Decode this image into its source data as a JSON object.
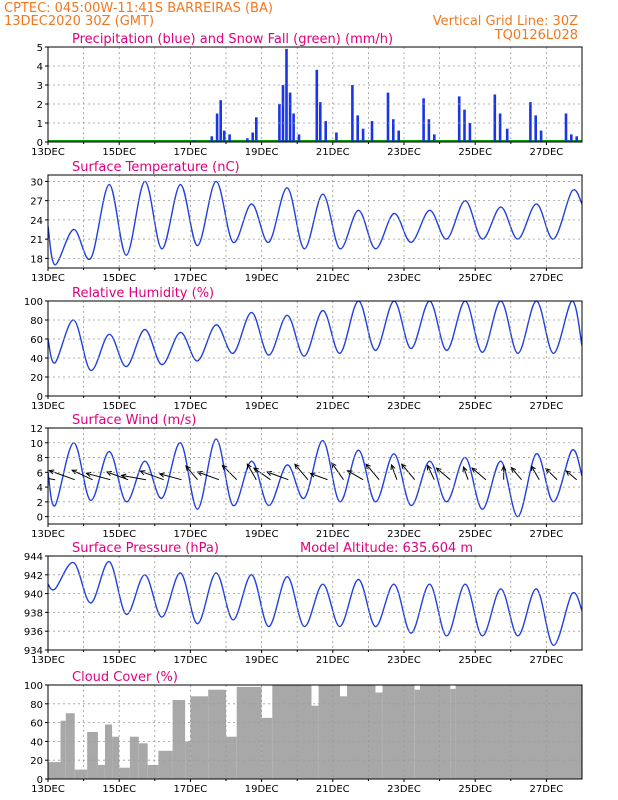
{
  "header": {
    "line1_left": "CPTEC:   045:00W-11:41S   BARREIRAS (BA)",
    "line2_left": "13DEC2020 30Z (GMT)",
    "line2_right": "Vertical Grid Line: 30Z",
    "line3_right": "TQ0126L028",
    "text_color": "#f07820"
  },
  "colors": {
    "title": "#e0007f",
    "line": "#2040e0",
    "precip": "#1a35e6",
    "snow": "#00a000",
    "cloud": "#a8a8a8",
    "wind_arrow": "#000000",
    "grid": "#9a9a9a"
  },
  "chart_data": [
    {
      "id": "precip",
      "type": "bar",
      "title": "Precipitation (blue) and Snow Fall (green) (mm/h)",
      "ylim": [
        0,
        5
      ],
      "yticks": [
        "0",
        "1",
        "2",
        "3",
        "4",
        "5"
      ],
      "xticks": [
        "13DEC",
        "15DEC",
        "17DEC",
        "19DEC",
        "21DEC",
        "23DEC",
        "25DEC",
        "27DEC"
      ],
      "grid": true,
      "series": [
        {
          "name": "Precipitation",
          "events": [
            {
              "day": 17.1,
              "value": 0.1
            },
            {
              "day": 17.6,
              "value": 0.3
            },
            {
              "day": 17.75,
              "value": 1.5
            },
            {
              "day": 17.85,
              "value": 2.2
            },
            {
              "day": 17.95,
              "value": 0.6
            },
            {
              "day": 18.1,
              "value": 0.4
            },
            {
              "day": 18.6,
              "value": 0.2
            },
            {
              "day": 18.75,
              "value": 0.5
            },
            {
              "day": 18.85,
              "value": 1.3
            },
            {
              "day": 19.5,
              "value": 2.0
            },
            {
              "day": 19.6,
              "value": 3.0
            },
            {
              "day": 19.7,
              "value": 4.9
            },
            {
              "day": 19.8,
              "value": 2.6
            },
            {
              "day": 19.9,
              "value": 1.5
            },
            {
              "day": 20.05,
              "value": 0.4
            },
            {
              "day": 20.55,
              "value": 3.8
            },
            {
              "day": 20.65,
              "value": 2.1
            },
            {
              "day": 20.8,
              "value": 1.1
            },
            {
              "day": 21.1,
              "value": 0.5
            },
            {
              "day": 21.55,
              "value": 3.0
            },
            {
              "day": 21.7,
              "value": 1.4
            },
            {
              "day": 21.85,
              "value": 0.7
            },
            {
              "day": 22.1,
              "value": 1.1
            },
            {
              "day": 22.55,
              "value": 2.6
            },
            {
              "day": 22.7,
              "value": 1.2
            },
            {
              "day": 22.85,
              "value": 0.6
            },
            {
              "day": 23.55,
              "value": 2.3
            },
            {
              "day": 23.7,
              "value": 1.2
            },
            {
              "day": 23.85,
              "value": 0.4
            },
            {
              "day": 24.55,
              "value": 2.4
            },
            {
              "day": 24.7,
              "value": 1.7
            },
            {
              "day": 24.85,
              "value": 1.0
            },
            {
              "day": 25.55,
              "value": 2.5
            },
            {
              "day": 25.7,
              "value": 1.5
            },
            {
              "day": 25.9,
              "value": 0.7
            },
            {
              "day": 26.55,
              "value": 2.1
            },
            {
              "day": 26.7,
              "value": 1.4
            },
            {
              "day": 26.85,
              "value": 0.6
            },
            {
              "day": 27.55,
              "value": 1.5
            },
            {
              "day": 27.7,
              "value": 0.4
            },
            {
              "day": 27.85,
              "value": 0.3
            }
          ]
        },
        {
          "name": "Snow Fall",
          "value": 0
        }
      ]
    },
    {
      "id": "temp",
      "type": "line",
      "title": "Surface Temperature (nC)",
      "ylim": [
        16.5,
        31
      ],
      "yticks": [
        "18",
        "21",
        "24",
        "27",
        "30"
      ],
      "xticks": [
        "13DEC",
        "15DEC",
        "17DEC",
        "19DEC",
        "21DEC",
        "23DEC",
        "25DEC",
        "27DEC"
      ],
      "grid": true,
      "daily": [
        {
          "day": 13,
          "min": 17.0,
          "max": 22.5
        },
        {
          "day": 14,
          "min": 18.0,
          "max": 29.5
        },
        {
          "day": 15,
          "min": 18.5,
          "max": 30.0
        },
        {
          "day": 16,
          "min": 19.5,
          "max": 29.5
        },
        {
          "day": 17,
          "min": 20.0,
          "max": 30.0
        },
        {
          "day": 18,
          "min": 20.5,
          "max": 26.5
        },
        {
          "day": 19,
          "min": 20.5,
          "max": 29.0
        },
        {
          "day": 20,
          "min": 19.5,
          "max": 28.0
        },
        {
          "day": 21,
          "min": 19.5,
          "max": 25.5
        },
        {
          "day": 22,
          "min": 19.5,
          "max": 25.0
        },
        {
          "day": 23,
          "min": 20.5,
          "max": 25.5
        },
        {
          "day": 24,
          "min": 21.0,
          "max": 27.0
        },
        {
          "day": 25,
          "min": 21.0,
          "max": 26.0
        },
        {
          "day": 26,
          "min": 21.0,
          "max": 26.5
        },
        {
          "day": 27,
          "min": 21.0,
          "max": 28.5
        }
      ],
      "end_value": 26.5
    },
    {
      "id": "rh",
      "type": "line",
      "title": "Relative Humidity (%)",
      "ylim": [
        0,
        100
      ],
      "yticks": [
        "0",
        "20",
        "40",
        "60",
        "80",
        "100"
      ],
      "xticks": [
        "13DEC",
        "15DEC",
        "17DEC",
        "19DEC",
        "21DEC",
        "23DEC",
        "25DEC",
        "27DEC"
      ],
      "grid": true,
      "daily": [
        {
          "day": 13,
          "min": 35,
          "max": 80
        },
        {
          "day": 14,
          "min": 27,
          "max": 65
        },
        {
          "day": 15,
          "min": 31,
          "max": 70
        },
        {
          "day": 16,
          "min": 33,
          "max": 67
        },
        {
          "day": 17,
          "min": 37,
          "max": 75
        },
        {
          "day": 18,
          "min": 45,
          "max": 88
        },
        {
          "day": 19,
          "min": 43,
          "max": 85
        },
        {
          "day": 20,
          "min": 42,
          "max": 90
        },
        {
          "day": 21,
          "min": 45,
          "max": 100
        },
        {
          "day": 22,
          "min": 48,
          "max": 100
        },
        {
          "day": 23,
          "min": 50,
          "max": 100
        },
        {
          "day": 24,
          "min": 48,
          "max": 100
        },
        {
          "day": 25,
          "min": 46,
          "max": 100
        },
        {
          "day": 26,
          "min": 45,
          "max": 100
        },
        {
          "day": 27,
          "min": 45,
          "max": 100
        }
      ],
      "end_value": 53
    },
    {
      "id": "wind",
      "type": "line",
      "title": "Surface Wind (m/s)",
      "ylim": [
        -1,
        12
      ],
      "yticks": [
        "0",
        "2",
        "4",
        "6",
        "8",
        "10",
        "12"
      ],
      "xticks": [
        "13DEC",
        "15DEC",
        "17DEC",
        "19DEC",
        "21DEC",
        "23DEC",
        "25DEC",
        "27DEC"
      ],
      "grid": true,
      "daily": [
        {
          "day": 13,
          "min": 1.5,
          "max": 10.0
        },
        {
          "day": 14,
          "min": 2.2,
          "max": 8.8
        },
        {
          "day": 15,
          "min": 2.0,
          "max": 7.5
        },
        {
          "day": 16,
          "min": 2.5,
          "max": 10.0
        },
        {
          "day": 17,
          "min": 1.0,
          "max": 10.5
        },
        {
          "day": 18,
          "min": 1.5,
          "max": 7.5
        },
        {
          "day": 19,
          "min": 1.5,
          "max": 7.0
        },
        {
          "day": 20,
          "min": 2.5,
          "max": 10.3
        },
        {
          "day": 21,
          "min": 2.0,
          "max": 9.0
        },
        {
          "day": 22,
          "min": 2.0,
          "max": 8.5
        },
        {
          "day": 23,
          "min": 1.5,
          "max": 7.5
        },
        {
          "day": 24,
          "min": 2.0,
          "max": 8.0
        },
        {
          "day": 25,
          "min": 1.0,
          "max": 7.5
        },
        {
          "day": 26,
          "min": 0.0,
          "max": 8.5
        },
        {
          "day": 27,
          "min": 2.0,
          "max": 9.0
        }
      ],
      "end_value": 5.5,
      "vectors": [
        {
          "day": 13.2,
          "speed": 5.5,
          "dir_deg": 190
        },
        {
          "day": 13.75,
          "speed": 6,
          "dir_deg": 200
        },
        {
          "day": 14.25,
          "speed": 5,
          "dir_deg": 205
        },
        {
          "day": 14.75,
          "speed": 5.5,
          "dir_deg": 195
        },
        {
          "day": 15.25,
          "speed": 5,
          "dir_deg": 200
        },
        {
          "day": 15.75,
          "speed": 5.5,
          "dir_deg": 190
        },
        {
          "day": 16.25,
          "speed": 5.5,
          "dir_deg": 200
        },
        {
          "day": 16.75,
          "speed": 5,
          "dir_deg": 195
        },
        {
          "day": 17.2,
          "speed": 4,
          "dir_deg": 230
        },
        {
          "day": 17.8,
          "speed": 5,
          "dir_deg": 200
        },
        {
          "day": 18.3,
          "speed": 4.5,
          "dir_deg": 225
        },
        {
          "day": 18.85,
          "speed": 4,
          "dir_deg": 240
        },
        {
          "day": 19.25,
          "speed": 4.5,
          "dir_deg": 215
        },
        {
          "day": 19.75,
          "speed": 5,
          "dir_deg": 200
        },
        {
          "day": 20.3,
          "speed": 4.5,
          "dir_deg": 230
        },
        {
          "day": 20.85,
          "speed": 4,
          "dir_deg": 200
        },
        {
          "day": 21.3,
          "speed": 4.5,
          "dir_deg": 235
        },
        {
          "day": 21.85,
          "speed": 4,
          "dir_deg": 210
        },
        {
          "day": 22.3,
          "speed": 4.5,
          "dir_deg": 230
        },
        {
          "day": 22.8,
          "speed": 3.5,
          "dir_deg": 250
        },
        {
          "day": 23.3,
          "speed": 4.5,
          "dir_deg": 230
        },
        {
          "day": 23.85,
          "speed": 3.5,
          "dir_deg": 245
        },
        {
          "day": 24.3,
          "speed": 4,
          "dir_deg": 220
        },
        {
          "day": 24.8,
          "speed": 3,
          "dir_deg": 250
        },
        {
          "day": 25.3,
          "speed": 4,
          "dir_deg": 220
        },
        {
          "day": 25.8,
          "speed": 3,
          "dir_deg": 270
        },
        {
          "day": 26.3,
          "speed": 3.5,
          "dir_deg": 230
        },
        {
          "day": 26.8,
          "speed": 3.5,
          "dir_deg": 240
        },
        {
          "day": 27.3,
          "speed": 3.5,
          "dir_deg": 225
        },
        {
          "day": 27.85,
          "speed": 3,
          "dir_deg": 220
        }
      ]
    },
    {
      "id": "pressure",
      "type": "line",
      "title": "Surface Pressure (hPa)",
      "subtitle": "Model Altitude: 635.604  m",
      "ylim": [
        934,
        944
      ],
      "yticks": [
        "934",
        "936",
        "938",
        "940",
        "942",
        "944"
      ],
      "xticks": [
        "13DEC",
        "15DEC",
        "17DEC",
        "19DEC",
        "21DEC",
        "23DEC",
        "25DEC",
        "27DEC"
      ],
      "grid": true,
      "daily": [
        {
          "day": 13,
          "min": 940.5,
          "max": 943.3
        },
        {
          "day": 14,
          "min": 939.0,
          "max": 943.4
        },
        {
          "day": 15,
          "min": 937.8,
          "max": 942.0
        },
        {
          "day": 16,
          "min": 937.5,
          "max": 942.2
        },
        {
          "day": 17,
          "min": 936.8,
          "max": 942.2
        },
        {
          "day": 18,
          "min": 937.2,
          "max": 942.0
        },
        {
          "day": 19,
          "min": 936.5,
          "max": 941.8
        },
        {
          "day": 20,
          "min": 936.5,
          "max": 941.0
        },
        {
          "day": 21,
          "min": 936.5,
          "max": 941.5
        },
        {
          "day": 22,
          "min": 936.5,
          "max": 941.0
        },
        {
          "day": 23,
          "min": 935.8,
          "max": 941.0
        },
        {
          "day": 24,
          "min": 935.5,
          "max": 941.0
        },
        {
          "day": 25,
          "min": 935.5,
          "max": 940.5
        },
        {
          "day": 26,
          "min": 935.5,
          "max": 940.5
        },
        {
          "day": 27,
          "min": 934.5,
          "max": 940.0
        }
      ],
      "end_value": 938.2
    },
    {
      "id": "cloud",
      "type": "area",
      "title": "Cloud Cover (%)",
      "ylim": [
        0,
        100
      ],
      "yticks": [
        "0",
        "20",
        "40",
        "60",
        "80",
        "100"
      ],
      "xticks": [
        "13DEC",
        "15DEC",
        "17DEC",
        "19DEC",
        "21DEC",
        "23DEC",
        "25DEC",
        "27DEC"
      ],
      "grid": true,
      "segments": [
        {
          "from": 13.0,
          "to": 13.35,
          "value": 18
        },
        {
          "from": 13.35,
          "to": 13.5,
          "value": 62
        },
        {
          "from": 13.5,
          "to": 13.75,
          "value": 70
        },
        {
          "from": 13.75,
          "to": 14.1,
          "value": 10
        },
        {
          "from": 14.1,
          "to": 14.4,
          "value": 50
        },
        {
          "from": 14.4,
          "to": 14.6,
          "value": 15
        },
        {
          "from": 14.6,
          "to": 14.8,
          "value": 58
        },
        {
          "from": 14.8,
          "to": 15.0,
          "value": 45
        },
        {
          "from": 15.0,
          "to": 15.3,
          "value": 12
        },
        {
          "from": 15.3,
          "to": 15.55,
          "value": 45
        },
        {
          "from": 15.55,
          "to": 15.8,
          "value": 38
        },
        {
          "from": 15.8,
          "to": 16.1,
          "value": 15
        },
        {
          "from": 16.1,
          "to": 16.5,
          "value": 30
        },
        {
          "from": 16.5,
          "to": 16.85,
          "value": 84
        },
        {
          "from": 16.85,
          "to": 17.0,
          "value": 40
        },
        {
          "from": 17.0,
          "to": 17.5,
          "value": 88
        },
        {
          "from": 17.5,
          "to": 18.0,
          "value": 95
        },
        {
          "from": 18.0,
          "to": 18.3,
          "value": 45
        },
        {
          "from": 18.3,
          "to": 19.0,
          "value": 98
        },
        {
          "from": 19.0,
          "to": 19.3,
          "value": 65
        },
        {
          "from": 19.3,
          "to": 20.4,
          "value": 100
        },
        {
          "from": 20.4,
          "to": 20.6,
          "value": 78
        },
        {
          "from": 20.6,
          "to": 21.2,
          "value": 100
        },
        {
          "from": 21.2,
          "to": 21.4,
          "value": 88
        },
        {
          "from": 21.4,
          "to": 22.2,
          "value": 100
        },
        {
          "from": 22.2,
          "to": 22.4,
          "value": 92
        },
        {
          "from": 22.4,
          "to": 23.3,
          "value": 100
        },
        {
          "from": 23.3,
          "to": 23.45,
          "value": 95
        },
        {
          "from": 23.45,
          "to": 24.3,
          "value": 100
        },
        {
          "from": 24.3,
          "to": 24.45,
          "value": 96
        },
        {
          "from": 24.45,
          "to": 28.0,
          "value": 100
        }
      ]
    }
  ]
}
